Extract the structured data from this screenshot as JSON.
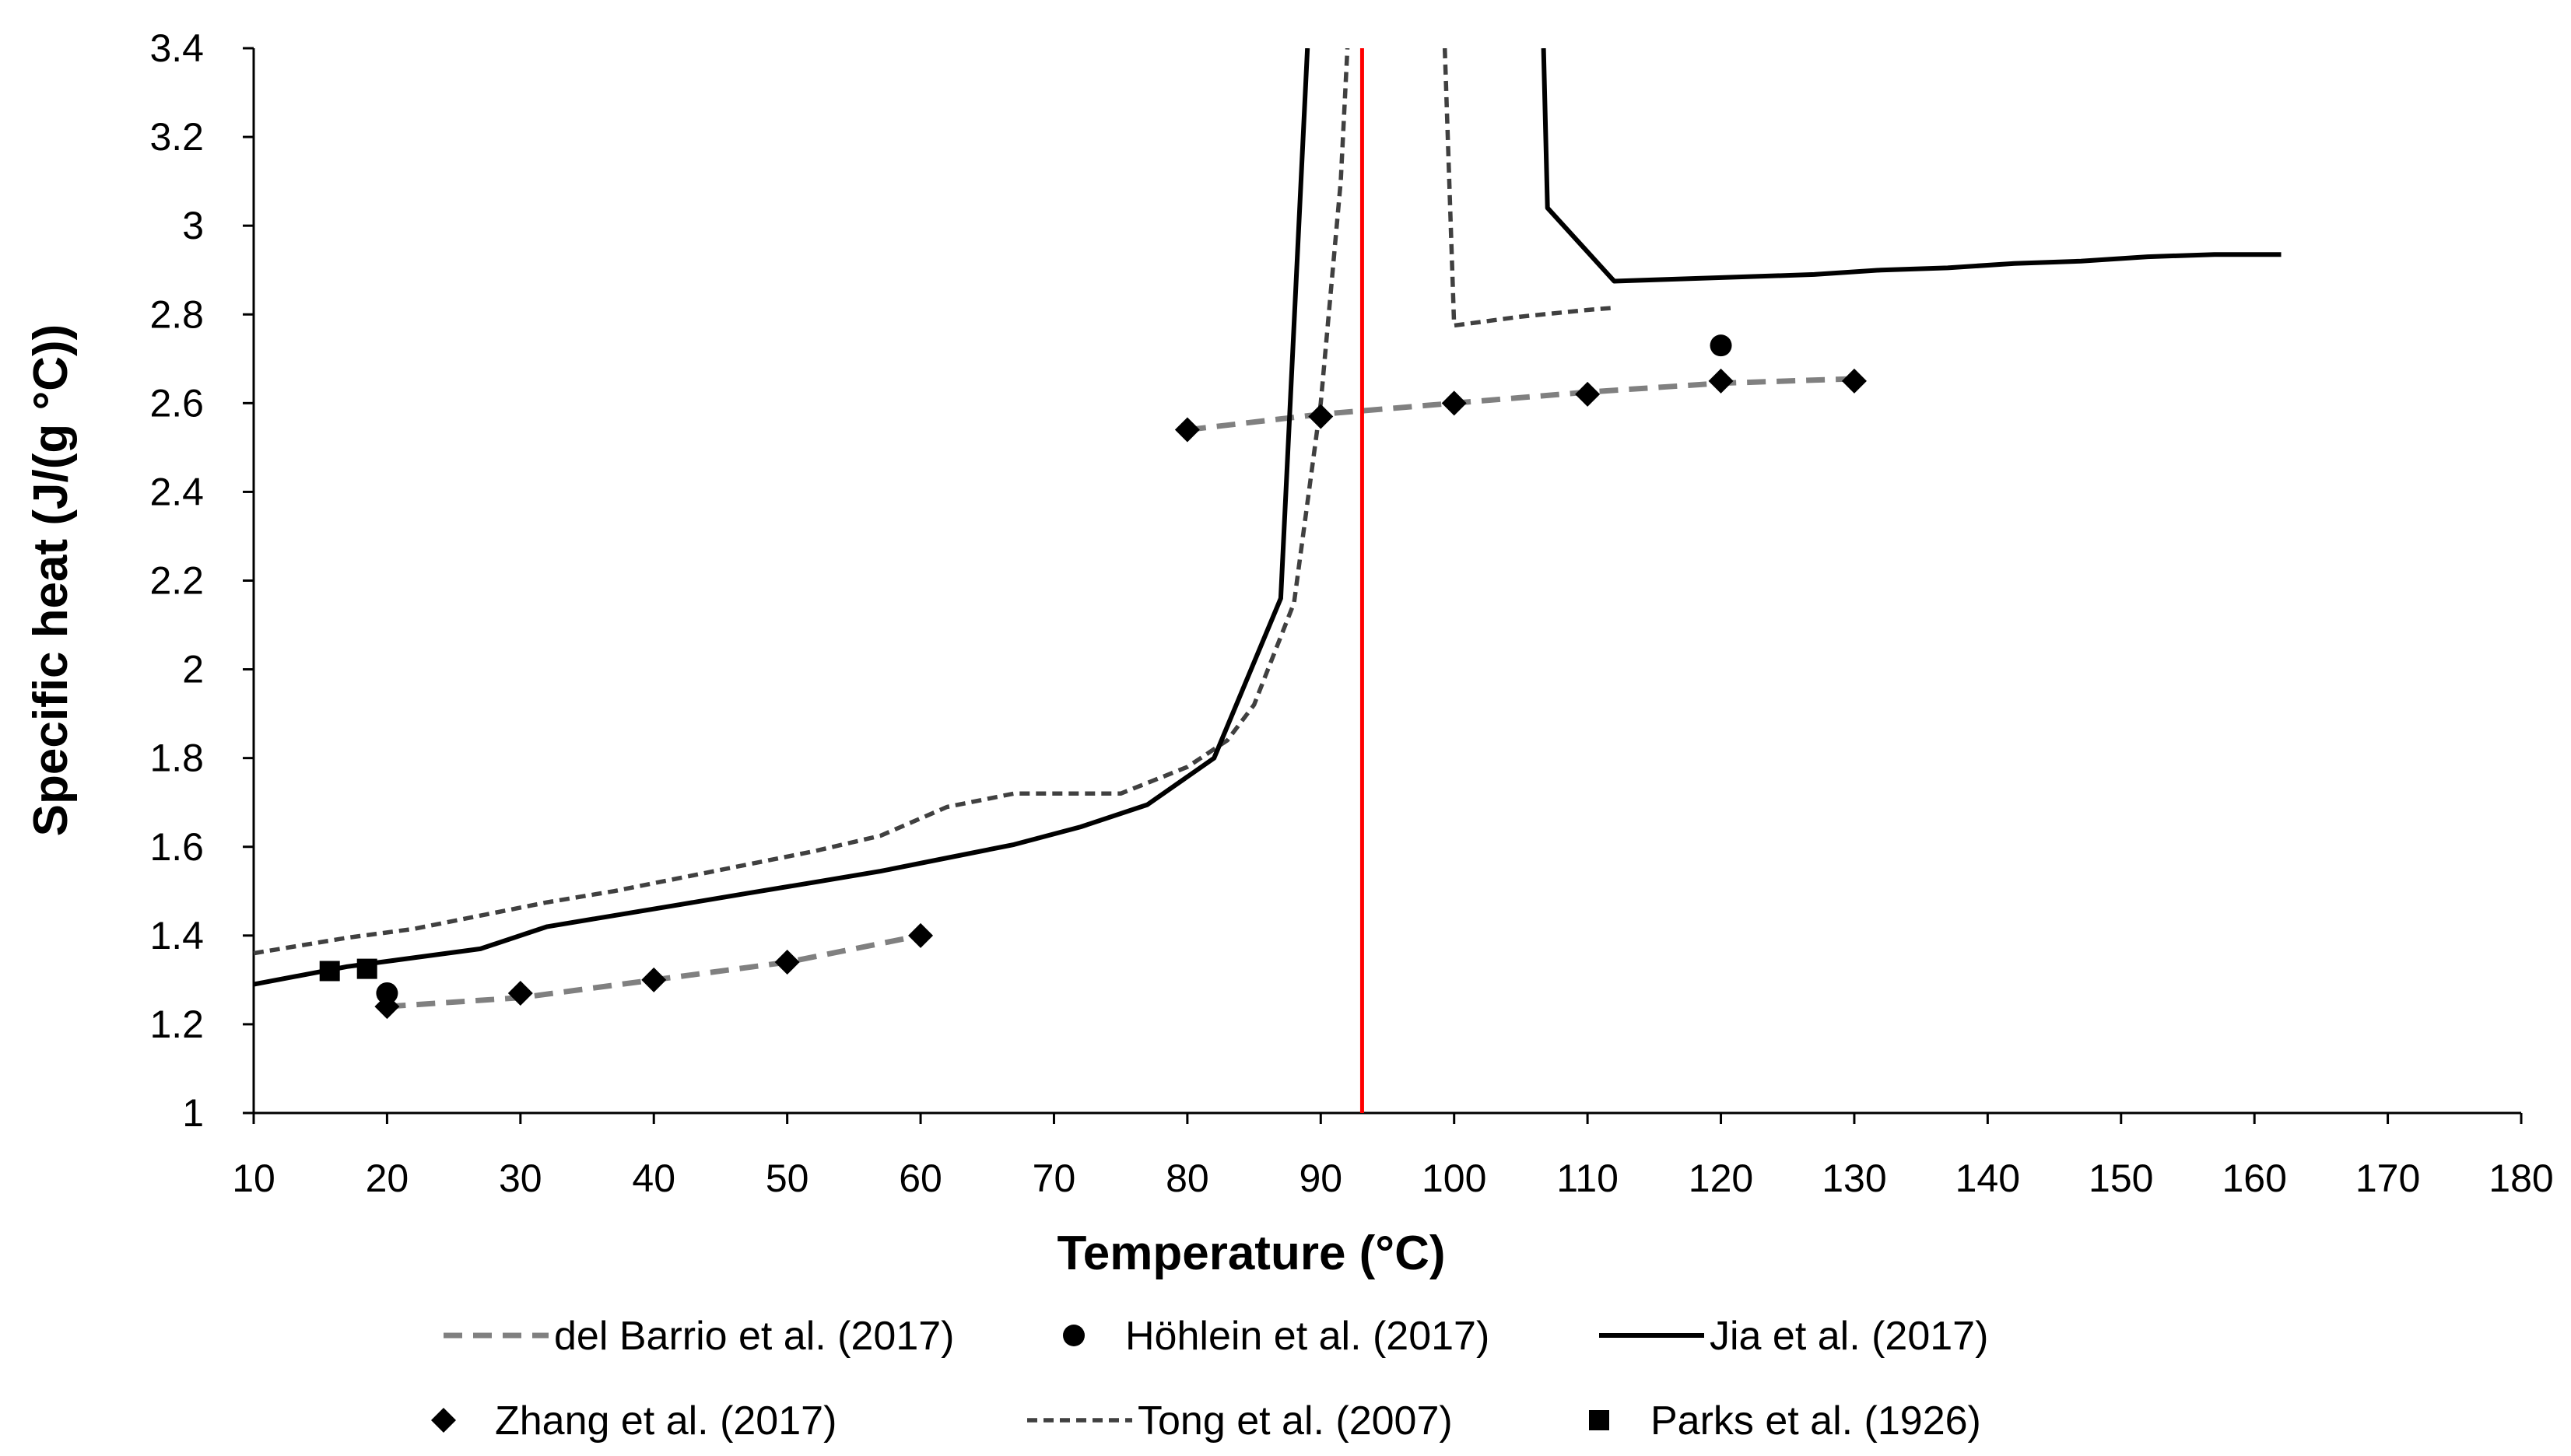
{
  "chart_data": {
    "type": "line",
    "title": "",
    "xlabel": "Temperature (°C)",
    "ylabel": "Specific heat (J/(g °C))",
    "xlim": [
      10,
      180
    ],
    "ylim": [
      1,
      3.4
    ],
    "xticks": [
      10,
      20,
      30,
      40,
      50,
      60,
      70,
      80,
      90,
      100,
      110,
      120,
      130,
      140,
      150,
      160,
      170,
      180
    ],
    "yticks": [
      1,
      1.2,
      1.4,
      1.6,
      1.8,
      2,
      2.2,
      2.4,
      2.6,
      2.8,
      3,
      3.2,
      3.4
    ],
    "grid": false,
    "legend_position": "bottom",
    "reference_line": {
      "x": 93.1,
      "color": "#ff0000"
    },
    "series": [
      {
        "name": "del Barrio et al. (2017)",
        "style": "dashed",
        "color": "#808080",
        "segments": [
          [
            [
              20,
              1.24
            ],
            [
              30,
              1.26
            ],
            [
              40,
              1.3
            ],
            [
              50,
              1.34
            ],
            [
              60,
              1.4
            ]
          ],
          [
            [
              80,
              2.54
            ],
            [
              90,
              2.575
            ],
            [
              100,
              2.6
            ],
            [
              110,
              2.625
            ],
            [
              120,
              2.645
            ],
            [
              130,
              2.655
            ]
          ]
        ]
      },
      {
        "name": "Höhlein et al. (2017)",
        "style": "marker-circle",
        "color": "#000000",
        "points": [
          [
            20,
            1.27
          ],
          [
            120,
            2.73
          ]
        ]
      },
      {
        "name": "Jia et al. (2017)",
        "style": "solid",
        "color": "#000000",
        "segments": [
          [
            [
              10,
              1.29
            ],
            [
              17,
              1.33
            ],
            [
              22,
              1.35
            ],
            [
              27,
              1.37
            ],
            [
              32,
              1.42
            ],
            [
              37,
              1.445
            ],
            [
              42,
              1.47
            ],
            [
              47,
              1.495
            ],
            [
              52,
              1.52
            ],
            [
              57,
              1.545
            ],
            [
              62,
              1.575
            ],
            [
              67,
              1.605
            ],
            [
              72,
              1.645
            ],
            [
              77,
              1.695
            ],
            [
              82,
              1.8
            ],
            [
              87,
              2.16
            ],
            [
              89,
              3.4
            ]
          ],
          [
            [
              106.7,
              3.4
            ],
            [
              107,
              3.04
            ],
            [
              112,
              2.875
            ],
            [
              117,
              2.88
            ],
            [
              122,
              2.885
            ],
            [
              127,
              2.89
            ],
            [
              132,
              2.9
            ],
            [
              137,
              2.905
            ],
            [
              142,
              2.915
            ],
            [
              147,
              2.92
            ],
            [
              152,
              2.93
            ],
            [
              157,
              2.935
            ],
            [
              162,
              2.935
            ]
          ]
        ]
      },
      {
        "name": "Zhang et al. (2017)",
        "style": "marker-diamond",
        "color": "#000000",
        "points": [
          [
            20,
            1.24
          ],
          [
            30,
            1.27
          ],
          [
            40,
            1.3
          ],
          [
            50,
            1.34
          ],
          [
            60,
            1.4
          ],
          [
            80,
            2.54
          ],
          [
            90,
            2.57
          ],
          [
            100,
            2.6
          ],
          [
            110,
            2.62
          ],
          [
            120,
            2.65
          ],
          [
            130,
            2.65
          ]
        ]
      },
      {
        "name": "Tong et al. (2007)",
        "style": "short-dashed",
        "color": "#404040",
        "segments": [
          [
            [
              10,
              1.36
            ],
            [
              17,
              1.395
            ],
            [
              22,
              1.415
            ],
            [
              27,
              1.445
            ],
            [
              32,
              1.475
            ],
            [
              37,
              1.5
            ],
            [
              42,
              1.53
            ],
            [
              47,
              1.56
            ],
            [
              52,
              1.59
            ],
            [
              57,
              1.625
            ],
            [
              62,
              1.69
            ],
            [
              67,
              1.72
            ],
            [
              72,
              1.72
            ],
            [
              75,
              1.72
            ],
            [
              80,
              1.78
            ],
            [
              83,
              1.84
            ],
            [
              85,
              1.92
            ],
            [
              88,
              2.15
            ],
            [
              90,
              2.6
            ],
            [
              91.5,
              3.1
            ],
            [
              92,
              3.4
            ]
          ],
          [
            [
              99.3,
              3.4
            ],
            [
              100,
              2.775
            ],
            [
              105,
              2.795
            ],
            [
              110,
              2.81
            ],
            [
              112,
              2.815
            ]
          ]
        ]
      },
      {
        "name": "Parks et al. (1926)",
        "style": "marker-square",
        "color": "#000000",
        "points": [
          [
            15.7,
            1.32
          ],
          [
            18.5,
            1.325
          ]
        ]
      }
    ]
  }
}
